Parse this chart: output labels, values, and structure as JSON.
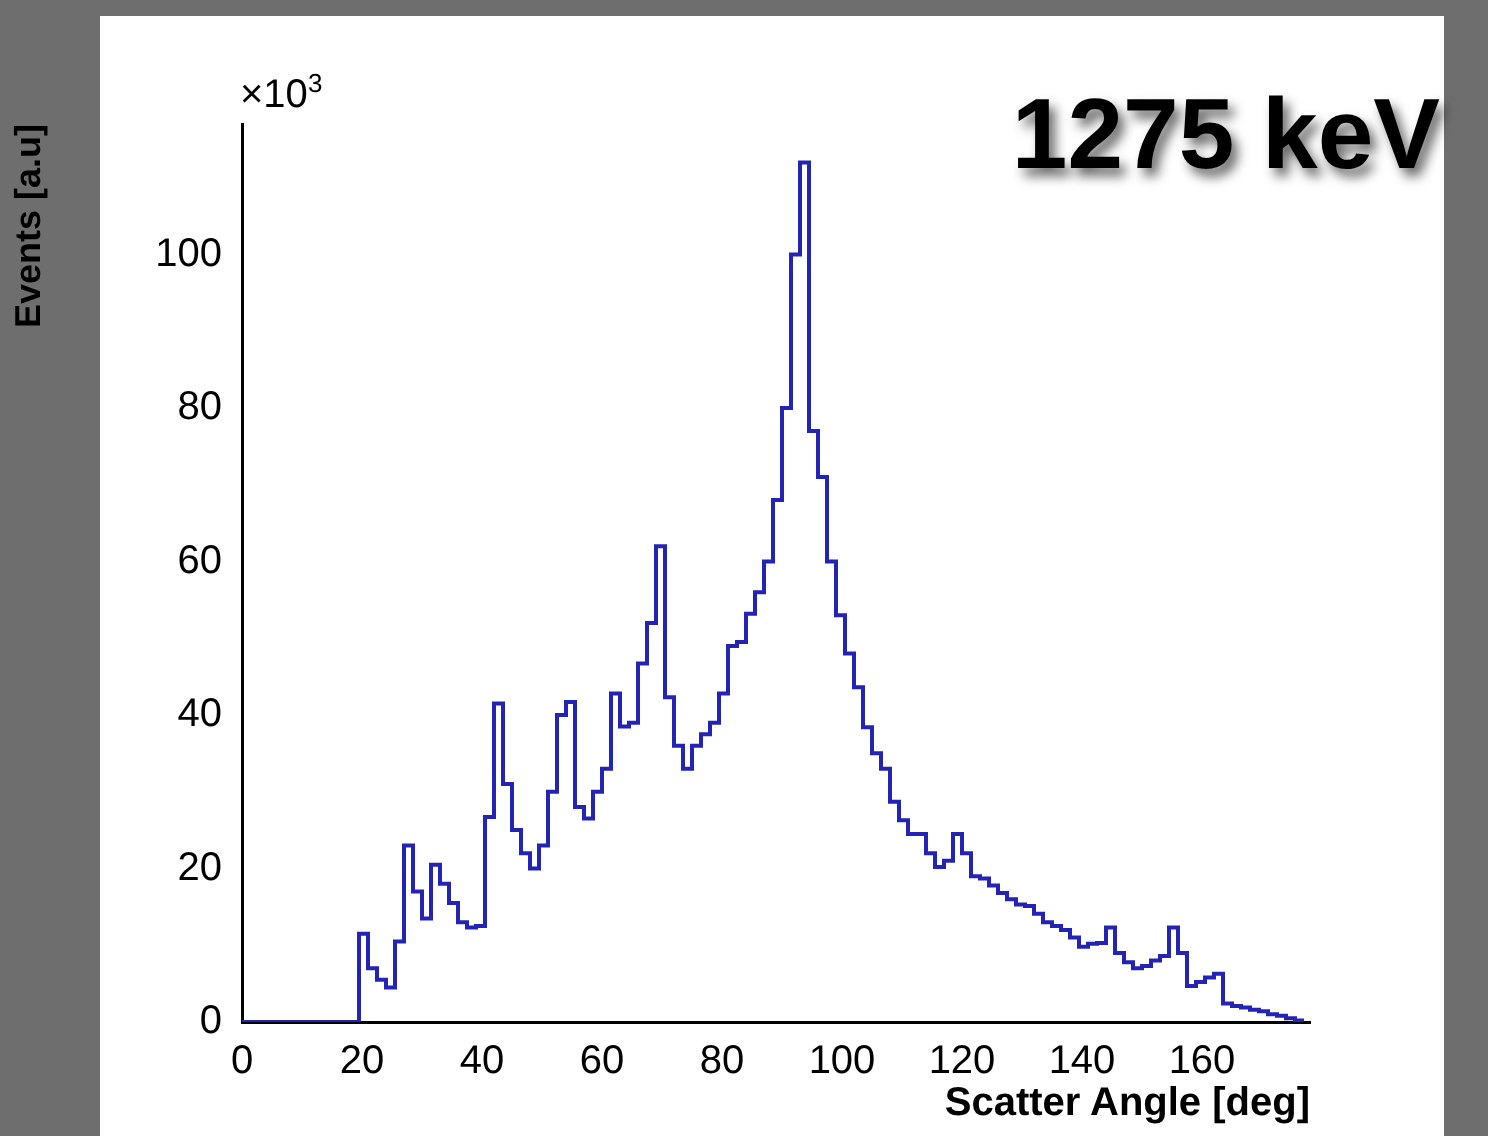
{
  "chart_data": {
    "type": "histogram",
    "title": "1275 keV",
    "xlabel": "Scatter Angle [deg]",
    "ylabel": "Events [a.u]",
    "annotations": [
      "×10$^{3}$"
    ],
    "bins": [
      0,
      1.5,
      3,
      4.5,
      6,
      7.5,
      9,
      10.5,
      12,
      13.5,
      15,
      16.5,
      18,
      19.5,
      21,
      22.5,
      24,
      25.5,
      27,
      28.5,
      30,
      31.5,
      33,
      34.5,
      36,
      37.5,
      39,
      40.5,
      42,
      43.5,
      45,
      46.5,
      48,
      49.5,
      51,
      52.5,
      54,
      55.5,
      57,
      58.5,
      60,
      61.5,
      63,
      64.5,
      66,
      67.5,
      69,
      70.5,
      72,
      73.5,
      75,
      76.5,
      78,
      79.5,
      81,
      82.5,
      84,
      85.5,
      87,
      88.5,
      90,
      91.5,
      93,
      94.5,
      96,
      97.5,
      99,
      100.5,
      102,
      103.5,
      105,
      106.5,
      108,
      109.5,
      111,
      112.5,
      114,
      115.5,
      117,
      118.5,
      120,
      121.5,
      123,
      124.5,
      126,
      127.5,
      129,
      130.5,
      132,
      133.5,
      135,
      136.5,
      138,
      139.5,
      141,
      142.5,
      144,
      145.5,
      147,
      148.5,
      150,
      151.5,
      153,
      154.5,
      156,
      157.5,
      159,
      160.5,
      162,
      163.5,
      165,
      166.5,
      168,
      169.5,
      171,
      172.5,
      174,
      175.5,
      177
    ],
    "values": [
      0,
      0,
      0,
      0,
      0,
      0,
      0,
      0,
      0,
      0,
      0,
      0,
      0,
      11.5,
      7,
      5.5,
      4.5,
      10.5,
      23,
      17,
      13.5,
      20.5,
      18,
      15.5,
      13,
      12.3,
      12.5,
      26.7,
      41.5,
      31,
      25,
      22,
      20,
      23,
      30,
      40,
      41.7,
      28,
      26.5,
      30,
      33,
      42.8,
      38.5,
      39,
      46.7,
      52,
      62,
      42.3,
      36,
      33,
      36,
      37.5,
      39,
      42.8,
      49,
      49.5,
      53.2,
      56,
      60,
      68,
      80,
      100,
      112,
      77,
      71,
      60,
      53,
      48,
      43.6,
      38.4,
      35,
      33,
      28.7,
      26.3,
      24.5,
      24.5,
      22,
      20.2,
      21,
      24.5,
      22,
      19,
      18.7,
      17.8,
      16.8,
      16,
      15.3,
      15.1,
      14.1,
      13,
      12.5,
      12,
      11,
      9.8,
      10.2,
      10.3,
      12.3,
      9,
      7.8,
      7,
      7.3,
      8,
      8.6,
      12.3,
      9,
      4.7,
      5.2,
      5.8,
      6.3,
      2.4,
      2.1,
      1.9,
      1.6,
      1.4,
      1.0,
      0.8,
      0.5,
      0.2
    ],
    "color": "#2424b4",
    "xlim": [
      0,
      178
    ],
    "ylim": [
      0,
      117
    ],
    "xticks": [
      0,
      20,
      40,
      60,
      80,
      100,
      120,
      140,
      160
    ],
    "yticks": [
      0,
      20,
      40,
      60,
      80,
      100
    ],
    "grid": false,
    "legend": false
  }
}
